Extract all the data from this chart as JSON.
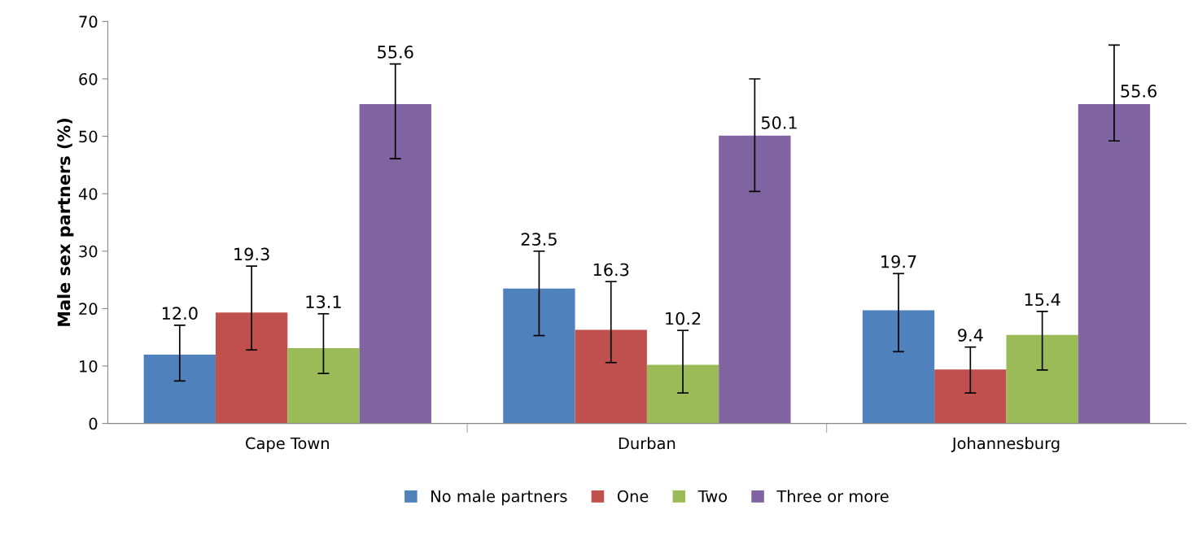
{
  "chart_data": {
    "type": "bar",
    "ylabel": "Male sex partners (%)",
    "categories": [
      "Cape Town",
      "Durban",
      "Johannesburg"
    ],
    "series": [
      {
        "name": "No male partners",
        "color": "#4f81bd",
        "values": [
          12.0,
          23.5,
          19.7
        ],
        "value_labels": [
          "12.0",
          "23.5",
          "19.7"
        ],
        "errors": [
          [
            7.4,
            17.1
          ],
          [
            15.3,
            30.0
          ],
          [
            12.5,
            26.1
          ]
        ]
      },
      {
        "name": "One",
        "color": "#c0504d",
        "values": [
          19.3,
          16.3,
          9.4
        ],
        "value_labels": [
          "19.3",
          "16.3",
          "9.4"
        ],
        "errors": [
          [
            12.8,
            27.4
          ],
          [
            10.6,
            24.7
          ],
          [
            5.3,
            13.3
          ]
        ]
      },
      {
        "name": "Two",
        "color": "#9bbb59",
        "values": [
          13.1,
          10.2,
          15.4
        ],
        "value_labels": [
          "13.1",
          "10.2",
          "15.4"
        ],
        "errors": [
          [
            8.7,
            19.1
          ],
          [
            5.3,
            16.2
          ],
          [
            9.3,
            19.5
          ]
        ]
      },
      {
        "name": "Three or more",
        "color": "#8064a2",
        "values": [
          55.6,
          50.1,
          55.6
        ],
        "value_labels": [
          "55.6",
          "50.1",
          "55.6"
        ],
        "errors": [
          [
            46.1,
            62.6
          ],
          [
            40.4,
            60.0
          ],
          [
            49.2,
            65.9
          ]
        ]
      }
    ],
    "ylim": [
      0,
      70
    ],
    "yticks": [
      0,
      10,
      20,
      30,
      40,
      50,
      60,
      70
    ],
    "grid": false,
    "legend": "bottom"
  }
}
